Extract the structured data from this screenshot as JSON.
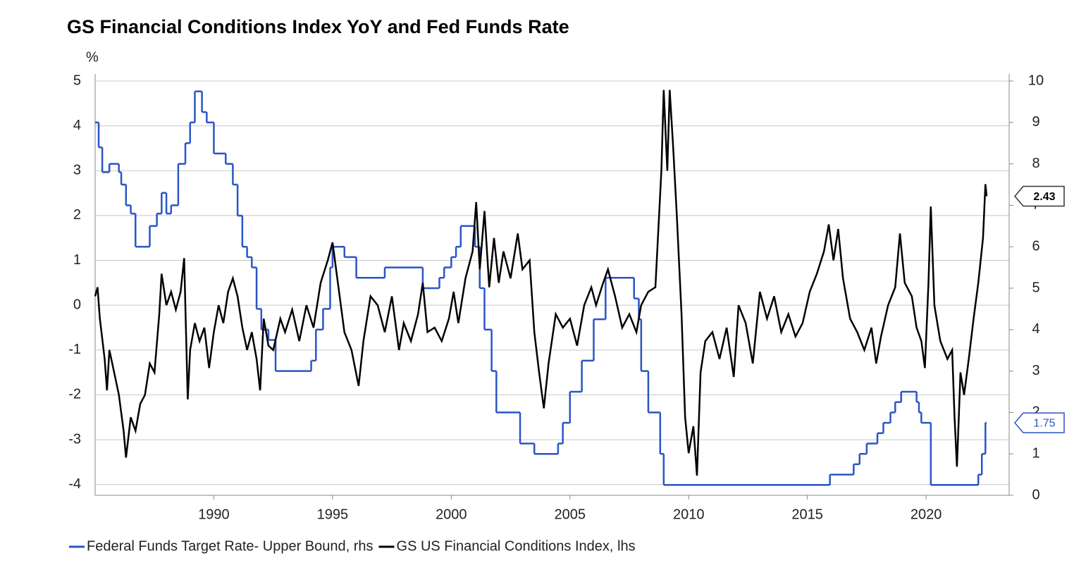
{
  "chart_data": {
    "type": "line",
    "title": "GS Financial Conditions Index YoY and Fed Funds Rate",
    "y_label": "%",
    "xlim": [
      1985,
      2023.5
    ],
    "xticks": [
      1990,
      1995,
      2000,
      2005,
      2010,
      2015,
      2020
    ],
    "ylim": [
      -4.24,
      5
    ],
    "yticks": [
      -4,
      -3,
      -2,
      -1,
      0,
      1,
      2,
      3,
      4,
      5
    ],
    "y2lim": [
      0,
      10
    ],
    "y2ticks": [
      0,
      1,
      2,
      3,
      4,
      5,
      6,
      7,
      8,
      9,
      10
    ],
    "grid": true,
    "legend": "bottom",
    "series": [
      {
        "name": "Federal Funds Target Rate- Upper Bound, rhs",
        "color": "#2a55c5",
        "axis": "y2",
        "step": true,
        "end_label": "1.75",
        "x": [
          1985.0,
          1985.15,
          1985.3,
          1985.6,
          1986.0,
          1986.1,
          1986.3,
          1986.5,
          1986.7,
          1987.0,
          1987.3,
          1987.6,
          1987.8,
          1988.0,
          1988.2,
          1988.5,
          1988.8,
          1989.0,
          1989.2,
          1989.5,
          1989.7,
          1990.0,
          1990.5,
          1990.8,
          1991.0,
          1991.2,
          1991.4,
          1991.6,
          1991.8,
          1992.0,
          1992.3,
          1992.6,
          1994.1,
          1994.3,
          1994.6,
          1994.9,
          1995.0,
          1995.5,
          1996.0,
          1997.2,
          1998.8,
          1999.5,
          1999.7,
          2000.0,
          2000.2,
          2000.4,
          2001.0,
          2001.2,
          2001.4,
          2001.7,
          2001.9,
          2002.9,
          2003.5,
          2004.5,
          2004.7,
          2005.0,
          2005.5,
          2006.0,
          2006.5,
          2007.7,
          2007.9,
          2008.0,
          2008.3,
          2008.8,
          2008.95,
          2015.95,
          2016.95,
          2017.2,
          2017.5,
          2017.95,
          2018.2,
          2018.5,
          2018.7,
          2018.95,
          2019.6,
          2019.7,
          2019.8,
          2020.2,
          2022.2,
          2022.35,
          2022.5,
          2022.55
        ],
        "values": [
          9.0,
          8.4,
          7.8,
          8.0,
          7.8,
          7.5,
          7.0,
          6.8,
          6.0,
          6.0,
          6.5,
          6.8,
          7.3,
          6.8,
          7.0,
          8.0,
          8.5,
          9.0,
          9.75,
          9.25,
          9.0,
          8.25,
          8.0,
          7.5,
          6.75,
          6.0,
          5.75,
          5.5,
          4.5,
          4.0,
          3.75,
          3.0,
          3.25,
          4.0,
          4.5,
          5.5,
          6.0,
          5.75,
          5.25,
          5.5,
          5.0,
          5.25,
          5.5,
          5.75,
          6.0,
          6.5,
          6.0,
          5.0,
          4.0,
          3.0,
          2.0,
          1.25,
          1.0,
          1.25,
          1.75,
          2.5,
          3.25,
          4.25,
          5.25,
          4.75,
          4.25,
          3.0,
          2.0,
          1.0,
          0.25,
          0.5,
          0.75,
          1.0,
          1.25,
          1.5,
          1.75,
          2.0,
          2.25,
          2.5,
          2.25,
          2.0,
          1.75,
          0.25,
          0.5,
          1.0,
          1.75,
          1.75
        ]
      },
      {
        "name": "GS US Financial Conditions Index, lhs",
        "color": "#000000",
        "axis": "y",
        "end_label": "2.43",
        "x": [
          1985.0,
          1985.1,
          1985.2,
          1985.4,
          1985.5,
          1985.6,
          1985.8,
          1986.0,
          1986.2,
          1986.3,
          1986.5,
          1986.7,
          1986.9,
          1987.1,
          1987.3,
          1987.5,
          1987.7,
          1987.8,
          1988.0,
          1988.2,
          1988.4,
          1988.6,
          1988.75,
          1988.9,
          1989.0,
          1989.2,
          1989.4,
          1989.6,
          1989.8,
          1990.0,
          1990.2,
          1990.4,
          1990.6,
          1990.8,
          1991.0,
          1991.2,
          1991.4,
          1991.6,
          1991.8,
          1991.95,
          1992.1,
          1992.3,
          1992.5,
          1992.8,
          1993.0,
          1993.3,
          1993.6,
          1993.9,
          1994.2,
          1994.5,
          1994.8,
          1995.0,
          1995.2,
          1995.5,
          1995.8,
          1996.1,
          1996.3,
          1996.6,
          1996.9,
          1997.2,
          1997.5,
          1997.8,
          1998.0,
          1998.3,
          1998.6,
          1998.8,
          1999.0,
          1999.3,
          1999.6,
          1999.9,
          2000.1,
          2000.3,
          2000.6,
          2000.9,
          2001.05,
          2001.2,
          2001.4,
          2001.6,
          2001.8,
          2002.0,
          2002.2,
          2002.5,
          2002.8,
          2003.0,
          2003.3,
          2003.5,
          2003.7,
          2003.9,
          2004.1,
          2004.4,
          2004.7,
          2005.0,
          2005.3,
          2005.6,
          2005.9,
          2006.1,
          2006.4,
          2006.6,
          2006.9,
          2007.2,
          2007.5,
          2007.8,
          2008.0,
          2008.3,
          2008.6,
          2008.85,
          2008.95,
          2009.1,
          2009.2,
          2009.35,
          2009.5,
          2009.7,
          2009.85,
          2010.0,
          2010.2,
          2010.35,
          2010.5,
          2010.7,
          2011.0,
          2011.3,
          2011.6,
          2011.9,
          2012.1,
          2012.4,
          2012.7,
          2013.0,
          2013.3,
          2013.6,
          2013.9,
          2014.2,
          2014.5,
          2014.8,
          2015.1,
          2015.4,
          2015.7,
          2015.9,
          2016.1,
          2016.3,
          2016.5,
          2016.8,
          2017.1,
          2017.4,
          2017.7,
          2017.9,
          2018.1,
          2018.4,
          2018.7,
          2018.9,
          2019.1,
          2019.4,
          2019.6,
          2019.8,
          2019.95,
          2020.1,
          2020.2,
          2020.35,
          2020.6,
          2020.9,
          2021.1,
          2021.2,
          2021.3,
          2021.45,
          2021.6,
          2021.8,
          2022.0,
          2022.2,
          2022.4,
          2022.5,
          2022.55
        ],
        "values": [
          0.2,
          0.4,
          -0.3,
          -1.2,
          -1.9,
          -1.0,
          -1.5,
          -2.0,
          -2.8,
          -3.4,
          -2.5,
          -2.8,
          -2.2,
          -2.0,
          -1.3,
          -1.5,
          -0.2,
          0.7,
          0.0,
          0.3,
          -0.1,
          0.3,
          1.05,
          -2.1,
          -1.0,
          -0.4,
          -0.8,
          -0.5,
          -1.4,
          -0.6,
          0.0,
          -0.4,
          0.3,
          0.6,
          0.2,
          -0.5,
          -1.0,
          -0.6,
          -1.2,
          -1.9,
          -0.3,
          -0.9,
          -1.0,
          -0.3,
          -0.6,
          -0.1,
          -0.8,
          0.0,
          -0.5,
          0.5,
          1.0,
          1.4,
          0.6,
          -0.6,
          -1.0,
          -1.8,
          -0.8,
          0.2,
          0.0,
          -0.6,
          0.2,
          -1.0,
          -0.4,
          -0.8,
          -0.2,
          0.5,
          -0.6,
          -0.5,
          -0.8,
          -0.3,
          0.3,
          -0.4,
          0.6,
          1.2,
          2.3,
          0.8,
          2.1,
          0.4,
          1.5,
          0.5,
          1.2,
          0.6,
          1.6,
          0.8,
          1.0,
          -0.6,
          -1.5,
          -2.3,
          -1.3,
          -0.2,
          -0.5,
          -0.3,
          -0.9,
          0.0,
          0.4,
          0.0,
          0.5,
          0.8,
          0.2,
          -0.5,
          -0.2,
          -0.6,
          0.0,
          0.3,
          0.4,
          3.0,
          4.8,
          3.0,
          4.8,
          3.5,
          2.0,
          -0.2,
          -2.5,
          -3.3,
          -2.7,
          -3.8,
          -1.5,
          -0.8,
          -0.6,
          -1.2,
          -0.5,
          -1.6,
          0.0,
          -0.4,
          -1.3,
          0.3,
          -0.3,
          0.2,
          -0.6,
          -0.2,
          -0.7,
          -0.4,
          0.3,
          0.7,
          1.2,
          1.8,
          1.0,
          1.7,
          0.6,
          -0.3,
          -0.6,
          -1.0,
          -0.5,
          -1.3,
          -0.7,
          0.0,
          0.4,
          1.6,
          0.5,
          0.2,
          -0.5,
          -0.8,
          -1.4,
          0.5,
          2.2,
          0.0,
          -0.8,
          -1.2,
          -1.0,
          -2.5,
          -3.6,
          -1.5,
          -2.0,
          -1.2,
          -0.3,
          0.5,
          1.5,
          2.7,
          2.43
        ]
      }
    ]
  }
}
